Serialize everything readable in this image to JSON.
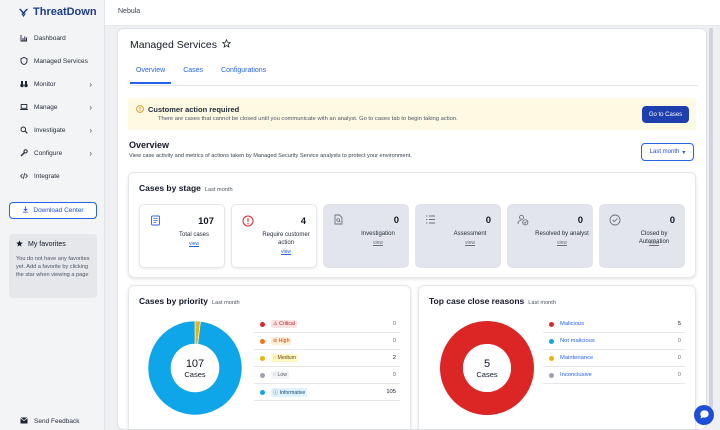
{
  "brand": {
    "name": "ThreatDown"
  },
  "topbar": {
    "breadcrumb": "Nebula"
  },
  "sidebar": {
    "items": [
      {
        "label": "Dashboard",
        "icon": "chart-icon"
      },
      {
        "label": "Managed Services",
        "icon": "shield-icon"
      },
      {
        "label": "Monitor",
        "icon": "binoculars-icon"
      },
      {
        "label": "Manage",
        "icon": "laptop-icon"
      },
      {
        "label": "Investigate",
        "icon": "search-icon"
      },
      {
        "label": "Configure",
        "icon": "wrench-icon"
      },
      {
        "label": "Integrate",
        "icon": "code-icon"
      }
    ],
    "download_label": "Download Center",
    "favorites": {
      "title": "My favorites",
      "text": "You do not have any favorites yet. Add a favorite by clicking the star when viewing a page"
    },
    "feedback_label": "Send Feedback"
  },
  "page": {
    "title": "Managed Services",
    "tabs": [
      "Overview",
      "Cases",
      "Configurations"
    ]
  },
  "alert": {
    "title": "Customer action required",
    "text": "There are cases that cannot be closed until you communicate with an analyst. Go to cases tab to begin taking action.",
    "button": "Go to Cases"
  },
  "overview": {
    "title": "Overview",
    "description": "View case activity and metrics of actions taken by Managed Security Service analysts to protect your environment.",
    "period_label": "Last month"
  },
  "stages": {
    "title": "Cases by stage",
    "subtitle": "Last month",
    "view_label": "view",
    "tiles": [
      {
        "label": "Total cases",
        "value": "107"
      },
      {
        "label": "Require customer action",
        "value": "4"
      },
      {
        "label": "Investigation",
        "value": "0"
      },
      {
        "label": "Assessment",
        "value": "0"
      },
      {
        "label": "Resolved by analyst",
        "value": "0"
      },
      {
        "label": "Closed by Automation",
        "value": "0"
      }
    ]
  },
  "priority": {
    "title": "Cases by priority",
    "subtitle": "Last month",
    "center_value": "107",
    "center_label": "Cases",
    "rows": [
      {
        "label": "Critical",
        "value": "0",
        "color": "#dc2626"
      },
      {
        "label": "High",
        "value": "0",
        "color": "#f97316"
      },
      {
        "label": "Medium",
        "value": "2",
        "color": "#eab308"
      },
      {
        "label": "Low",
        "value": "0",
        "color": "#9ca3af"
      },
      {
        "label": "Informative",
        "value": "105",
        "color": "#0ea5e9"
      }
    ]
  },
  "reasons": {
    "title": "Top case close reasons",
    "subtitle": "Last month",
    "center_value": "5",
    "center_label": "Cases",
    "rows": [
      {
        "label": "Malicious",
        "value": "5",
        "color": "#dc2626"
      },
      {
        "label": "Not malicious",
        "value": "0",
        "color": "#0ea5e9"
      },
      {
        "label": "Maintenance",
        "value": "0",
        "color": "#eab308"
      },
      {
        "label": "Inconclusive",
        "value": "0",
        "color": "#9ca3af"
      }
    ]
  }
}
